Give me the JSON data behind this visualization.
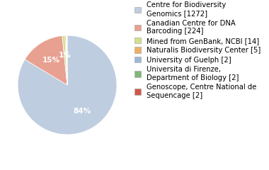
{
  "labels": [
    "Centre for Biodiversity\nGenomics [1272]",
    "Canadian Centre for DNA\nBarcoding [224]",
    "Mined from GenBank, NCBI [14]",
    "Naturalis Biodiversity Center [5]",
    "University of Guelph [2]",
    "Universita di Firenze,\nDepartment of Biology [2]",
    "Genoscope, Centre National de\nSequencage [2]"
  ],
  "values": [
    1272,
    224,
    14,
    5,
    2,
    2,
    2
  ],
  "colors": [
    "#bfcde0",
    "#e8a090",
    "#d4e08a",
    "#f0b060",
    "#a0b8d8",
    "#80b878",
    "#d05848"
  ],
  "background_color": "#ffffff",
  "legend_fontsize": 7.2,
  "pct_fontsize": 7.5
}
